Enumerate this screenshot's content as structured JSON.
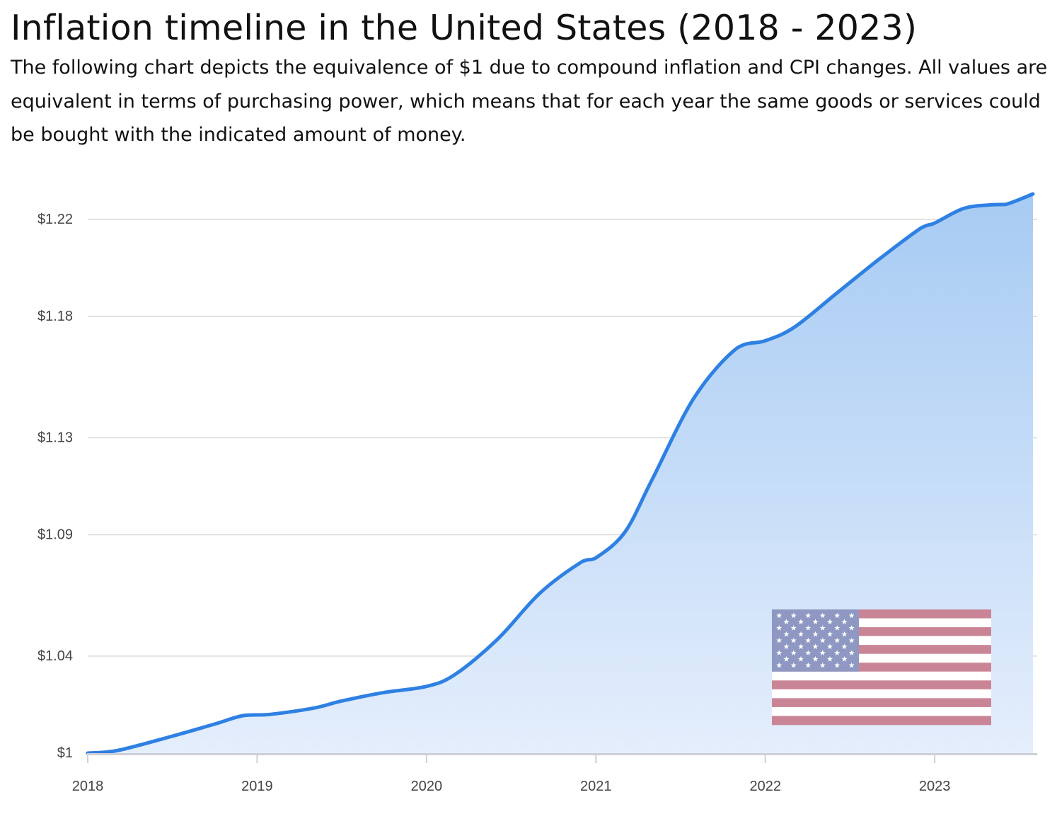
{
  "header": {
    "title": "Inflation timeline in the United States (2018 - 2023)",
    "subtitle": "The following chart depicts the equivalence of $1 due to compound inflation and CPI changes. All values are equivalent in terms of purchasing power, which means that for each year the same goods or services could be bought with the indicated amount of money."
  },
  "chart_data": {
    "type": "area",
    "title": "Inflation timeline in the United States (2018 - 2023)",
    "xlabel": "",
    "ylabel": "",
    "x": [
      2018.0,
      2018.17,
      2018.5,
      2018.75,
      2018.92,
      2019.08,
      2019.33,
      2019.5,
      2019.75,
      2020.0,
      2020.17,
      2020.42,
      2020.67,
      2020.92,
      2021.0,
      2021.17,
      2021.33,
      2021.58,
      2021.83,
      2022.0,
      2022.17,
      2022.42,
      2022.67,
      2022.92,
      2023.0,
      2023.17,
      2023.33,
      2023.42,
      2023.58
    ],
    "values": [
      1.0,
      1.001,
      1.007,
      1.012,
      1.0155,
      1.016,
      1.0185,
      1.0215,
      1.025,
      1.0275,
      1.0325,
      1.047,
      1.066,
      1.079,
      1.0805,
      1.091,
      1.1125,
      1.1465,
      1.1668,
      1.17,
      1.1755,
      1.1895,
      1.2035,
      1.2165,
      1.2185,
      1.2245,
      1.226,
      1.2262,
      1.2305
    ],
    "categories": [
      "2018",
      "2019",
      "2020",
      "2021",
      "2022",
      "2023"
    ],
    "x_ticks": [
      2018,
      2019,
      2020,
      2021,
      2022,
      2023
    ],
    "xlim": [
      2018,
      2023.58
    ],
    "y_ticks": [
      1.0,
      1.04,
      1.09,
      1.13,
      1.18,
      1.22
    ],
    "y_tick_labels": [
      "$1",
      "$1.04",
      "$1.09",
      "$1.13",
      "$1.18",
      "$1.22"
    ],
    "ylim": [
      1.0,
      1.2305
    ],
    "grid": true,
    "legend": "none",
    "colors": {
      "line": "#2f80e3",
      "fill_top": "#a7cbf3",
      "fill_bottom": "#e4eefc",
      "grid": "#d9d9d9",
      "axis": "#cfd0d6"
    }
  },
  "flag": {
    "description": "flag-of-the-united-states",
    "colors": {
      "red": "#c98595",
      "white": "#ffffff",
      "blue": "#8e98c2"
    }
  }
}
